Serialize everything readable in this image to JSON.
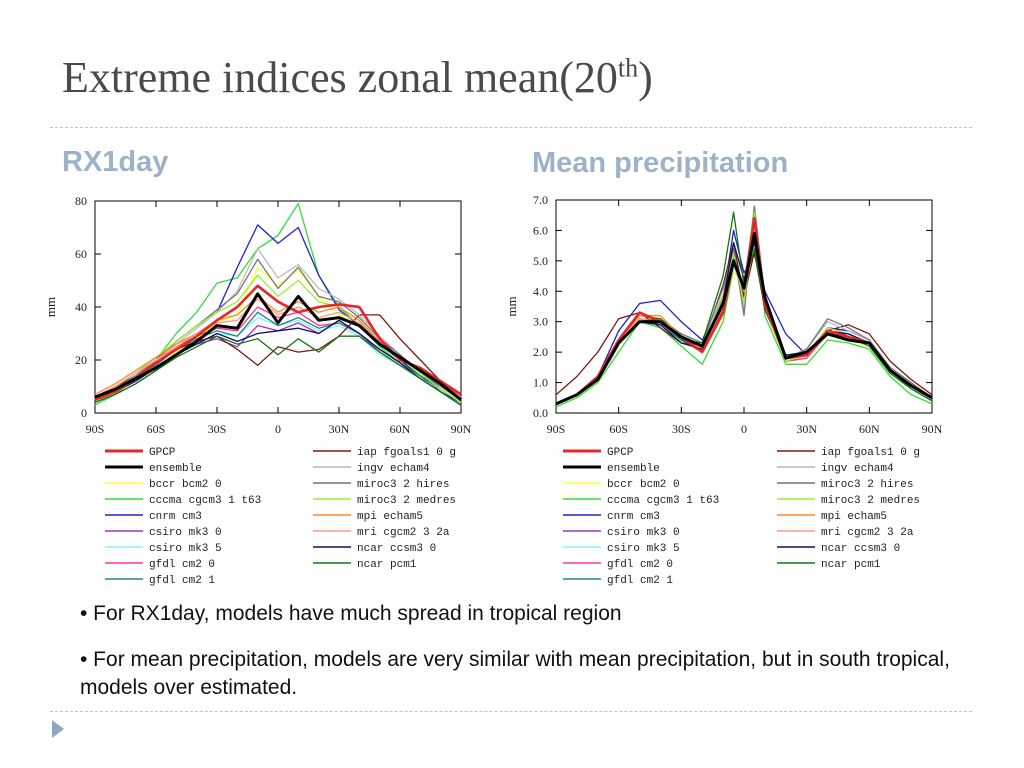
{
  "slide": {
    "title": "Extreme indices zonal mean(20",
    "title_sup": "th",
    "title_end": ")",
    "left_heading": "RX1day",
    "right_heading": "Mean precipitation",
    "bullets": [
      "• For RX1day, models have much spread in tropical region",
      "• For mean precipitation, models are very similar with mean precipitation, but in south tropical, models over estimated."
    ]
  },
  "chart_data": [
    {
      "type": "line",
      "ylabel": "mm",
      "ylim": [
        0,
        80
      ],
      "yticks": [
        "0",
        "20",
        "40",
        "60",
        "80"
      ],
      "xlim": [
        -90,
        90
      ],
      "xticks": [
        "90S",
        "60S",
        "30S",
        "0",
        "30N",
        "60N",
        "90N"
      ],
      "x": [
        -90,
        -80,
        -70,
        -60,
        -50,
        -40,
        -30,
        -20,
        -10,
        0,
        10,
        20,
        30,
        40,
        50,
        60,
        70,
        80,
        90
      ],
      "series": [
        {
          "name": "GPCP",
          "color": "#e8262a",
          "values": [
            5,
            8,
            13,
            19,
            24,
            29,
            35,
            40,
            48,
            42,
            38,
            40,
            41,
            40,
            28,
            20,
            17,
            12,
            7
          ]
        },
        {
          "name": "ensemble",
          "color": "#000000",
          "values": [
            6,
            9,
            13,
            17,
            22,
            27,
            33,
            32,
            45,
            34,
            44,
            35,
            36,
            33,
            26,
            21,
            16,
            11,
            5
          ]
        },
        {
          "name": "bccr bcm2 0",
          "color": "#ffff33",
          "values": [
            4,
            8,
            12,
            17,
            23,
            28,
            34,
            37,
            55,
            48,
            54,
            44,
            37,
            33,
            26,
            20,
            15,
            10,
            5
          ]
        },
        {
          "name": "cccma cgcm3 1 t63",
          "color": "#33dd33",
          "values": [
            3,
            7,
            13,
            20,
            30,
            38,
            49,
            51,
            62,
            67,
            79,
            52,
            40,
            33,
            25,
            19,
            13,
            8,
            3
          ]
        },
        {
          "name": "cnrm cm3",
          "color": "#2222cc",
          "values": [
            5,
            9,
            14,
            20,
            27,
            33,
            38,
            55,
            71,
            64,
            70,
            52,
            39,
            33,
            26,
            20,
            14,
            8,
            4
          ]
        },
        {
          "name": "csiro mk3 0",
          "color": "#9933cc",
          "values": [
            4,
            7,
            11,
            16,
            22,
            26,
            28,
            25,
            33,
            31,
            34,
            30,
            35,
            30,
            23,
            18,
            13,
            8,
            3
          ]
        },
        {
          "name": "csiro mk3 5",
          "color": "#88eeff",
          "values": [
            5,
            8,
            12,
            17,
            22,
            26,
            30,
            29,
            36,
            33,
            35,
            31,
            33,
            29,
            22,
            18,
            13,
            9,
            4
          ]
        },
        {
          "name": "gfdl cm2 0",
          "color": "#ff3399",
          "values": [
            6,
            9,
            14,
            19,
            25,
            29,
            32,
            31,
            40,
            36,
            38,
            33,
            34,
            30,
            24,
            19,
            14,
            10,
            5
          ]
        },
        {
          "name": "gfdl cm2 1",
          "color": "#1a8a7a",
          "values": [
            5,
            9,
            13,
            18,
            24,
            28,
            31,
            29,
            38,
            33,
            36,
            32,
            34,
            30,
            24,
            19,
            14,
            9,
            4
          ]
        },
        {
          "name": "iap fgoals1 0 g",
          "color": "#7a1a10",
          "values": [
            6,
            10,
            14,
            19,
            24,
            27,
            29,
            24,
            18,
            25,
            23,
            24,
            29,
            37,
            37,
            28,
            20,
            12,
            6
          ]
        },
        {
          "name": "ingv echam4",
          "color": "#bbbbbb",
          "values": [
            5,
            9,
            14,
            20,
            26,
            32,
            38,
            46,
            62,
            51,
            56,
            47,
            43,
            37,
            29,
            22,
            16,
            10,
            5
          ]
        },
        {
          "name": "miroc3 2 hires",
          "color": "#777777",
          "values": [
            5,
            9,
            14,
            20,
            27,
            33,
            39,
            45,
            58,
            47,
            55,
            44,
            42,
            36,
            28,
            22,
            15,
            10,
            5
          ]
        },
        {
          "name": "miroc3 2 medres",
          "color": "#99ee33",
          "values": [
            6,
            10,
            15,
            21,
            27,
            33,
            38,
            42,
            52,
            44,
            50,
            42,
            40,
            35,
            27,
            21,
            15,
            9,
            4
          ]
        },
        {
          "name": "mpi echam5",
          "color": "#ff8822",
          "values": [
            7,
            11,
            16,
            21,
            26,
            30,
            35,
            37,
            44,
            38,
            42,
            38,
            40,
            35,
            27,
            21,
            16,
            11,
            6
          ]
        },
        {
          "name": "mri cgcm2 3 2a",
          "color": "#ff9988",
          "values": [
            6,
            10,
            15,
            20,
            25,
            30,
            34,
            35,
            43,
            37,
            40,
            36,
            38,
            34,
            27,
            21,
            16,
            11,
            6
          ]
        },
        {
          "name": "ncar ccsm3 0",
          "color": "#111166",
          "values": [
            5,
            8,
            12,
            17,
            22,
            26,
            30,
            27,
            30,
            31,
            32,
            30,
            35,
            30,
            24,
            19,
            13,
            8,
            3
          ]
        },
        {
          "name": "ncar pcm1",
          "color": "#117711",
          "values": [
            4,
            7,
            11,
            16,
            21,
            25,
            29,
            26,
            28,
            22,
            28,
            23,
            29,
            29,
            23,
            18,
            13,
            8,
            3
          ]
        }
      ]
    },
    {
      "type": "line",
      "ylabel": "mm",
      "ylim": [
        0,
        7
      ],
      "yticks": [
        "0.0",
        "1.0",
        "2.0",
        "3.0",
        "4.0",
        "5.0",
        "6.0",
        "7.0"
      ],
      "xlim": [
        -90,
        90
      ],
      "xticks": [
        "90S",
        "60S",
        "30S",
        "0",
        "30N",
        "60N",
        "90N"
      ],
      "x": [
        -90,
        -80,
        -70,
        -60,
        -50,
        -40,
        -30,
        -20,
        -10,
        -5,
        0,
        5,
        10,
        20,
        30,
        40,
        50,
        60,
        70,
        80,
        90
      ],
      "series": [
        {
          "name": "GPCP",
          "color": "#e8262a",
          "values": [
            0.3,
            0.6,
            1.2,
            2.4,
            3.3,
            3.0,
            2.5,
            2.0,
            3.3,
            5.0,
            4.1,
            6.4,
            3.6,
            1.8,
            1.9,
            2.7,
            2.5,
            2.3,
            1.4,
            0.9,
            0.5
          ]
        },
        {
          "name": "ensemble",
          "color": "#000000",
          "values": [
            0.3,
            0.6,
            1.1,
            2.3,
            3.0,
            3.0,
            2.5,
            2.2,
            3.6,
            5.0,
            4.1,
            5.9,
            3.8,
            1.8,
            2.0,
            2.6,
            2.4,
            2.3,
            1.4,
            0.9,
            0.5
          ]
        },
        {
          "name": "bccr bcm2 0",
          "color": "#ffff33",
          "values": [
            0.3,
            0.6,
            1.2,
            2.4,
            3.3,
            3.1,
            2.4,
            2.0,
            3.2,
            4.6,
            4.3,
            6.1,
            3.4,
            1.7,
            1.8,
            2.6,
            2.4,
            2.2,
            1.3,
            0.8,
            0.5
          ]
        },
        {
          "name": "cccma cgcm3 1 t63",
          "color": "#33dd33",
          "values": [
            0.2,
            0.5,
            1.0,
            2.0,
            3.0,
            2.8,
            2.2,
            1.6,
            3.0,
            4.8,
            4.0,
            6.8,
            3.2,
            1.6,
            1.6,
            2.4,
            2.3,
            2.1,
            1.2,
            0.6,
            0.3
          ]
        },
        {
          "name": "cnrm cm3",
          "color": "#2222cc",
          "values": [
            0.3,
            0.6,
            1.2,
            2.7,
            3.6,
            3.7,
            3.0,
            2.4,
            3.8,
            6.0,
            4.6,
            5.2,
            4.0,
            2.6,
            1.9,
            2.8,
            2.7,
            2.4,
            1.4,
            0.8,
            0.4
          ]
        },
        {
          "name": "csiro mk3 0",
          "color": "#9933cc",
          "values": [
            0.3,
            0.6,
            1.1,
            2.3,
            3.1,
            2.9,
            2.4,
            2.0,
            3.4,
            4.9,
            3.9,
            5.8,
            3.4,
            1.8,
            1.9,
            2.6,
            2.6,
            2.3,
            1.4,
            0.9,
            0.5
          ]
        },
        {
          "name": "csiro mk3 5",
          "color": "#88eeff",
          "values": [
            0.3,
            0.6,
            1.2,
            2.3,
            3.0,
            2.9,
            2.4,
            2.0,
            3.3,
            4.8,
            4.0,
            5.9,
            3.5,
            1.8,
            1.9,
            2.6,
            2.5,
            2.3,
            1.4,
            0.9,
            0.5
          ]
        },
        {
          "name": "gfdl cm2 0",
          "color": "#ff3399",
          "values": [
            0.3,
            0.6,
            1.2,
            2.4,
            3.1,
            3.0,
            2.4,
            2.0,
            3.4,
            5.1,
            4.0,
            6.2,
            3.5,
            1.7,
            1.8,
            2.6,
            2.5,
            2.3,
            1.4,
            0.9,
            0.5
          ]
        },
        {
          "name": "gfdl cm2 1",
          "color": "#1a8a7a",
          "values": [
            0.3,
            0.6,
            1.1,
            2.3,
            3.0,
            2.9,
            2.4,
            2.0,
            3.5,
            5.2,
            4.1,
            6.0,
            3.6,
            1.8,
            1.9,
            2.7,
            2.5,
            2.3,
            1.4,
            0.9,
            0.5
          ]
        },
        {
          "name": "iap fgoals1 0 g",
          "color": "#7a1a10",
          "values": [
            0.6,
            1.2,
            2.0,
            3.1,
            3.3,
            2.8,
            2.3,
            2.2,
            4.2,
            5.6,
            3.8,
            5.3,
            3.4,
            1.9,
            2.0,
            2.7,
            2.9,
            2.6,
            1.7,
            1.1,
            0.6
          ]
        },
        {
          "name": "ingv echam4",
          "color": "#bbbbbb",
          "values": [
            0.3,
            0.6,
            1.2,
            2.4,
            3.1,
            3.0,
            2.6,
            2.3,
            3.9,
            5.4,
            3.4,
            6.4,
            3.6,
            1.8,
            2.1,
            3.0,
            2.7,
            2.4,
            1.5,
            1.0,
            0.5
          ]
        },
        {
          "name": "miroc3 2 hires",
          "color": "#777777",
          "values": [
            0.3,
            0.6,
            1.2,
            2.4,
            3.2,
            3.1,
            2.6,
            2.3,
            4.1,
            5.4,
            3.2,
            6.8,
            3.8,
            1.8,
            2.1,
            3.1,
            2.8,
            2.4,
            1.5,
            1.0,
            0.5
          ]
        },
        {
          "name": "miroc3 2 medres",
          "color": "#99ee33",
          "values": [
            0.3,
            0.6,
            1.2,
            2.3,
            3.0,
            3.0,
            2.5,
            2.1,
            3.8,
            5.2,
            3.6,
            6.6,
            3.5,
            1.7,
            1.9,
            2.8,
            2.6,
            2.3,
            1.4,
            0.9,
            0.5
          ]
        },
        {
          "name": "mpi echam5",
          "color": "#ff8822",
          "values": [
            0.3,
            0.6,
            1.2,
            2.4,
            3.2,
            3.2,
            2.5,
            2.1,
            3.6,
            5.0,
            4.0,
            6.3,
            3.6,
            1.8,
            2.0,
            2.6,
            2.5,
            2.3,
            1.4,
            0.9,
            0.5
          ]
        },
        {
          "name": "mri cgcm2 3 2a",
          "color": "#ff9988",
          "values": [
            0.3,
            0.6,
            1.2,
            2.4,
            3.1,
            3.0,
            2.5,
            2.1,
            3.5,
            4.9,
            4.0,
            6.0,
            3.6,
            1.8,
            2.0,
            2.6,
            2.5,
            2.3,
            1.4,
            0.9,
            0.5
          ]
        },
        {
          "name": "ncar ccsm3 0",
          "color": "#111166",
          "values": [
            0.3,
            0.6,
            1.1,
            2.3,
            3.0,
            2.9,
            2.3,
            2.1,
            3.7,
            5.6,
            4.4,
            5.6,
            3.7,
            1.9,
            2.0,
            2.7,
            2.6,
            2.3,
            1.4,
            0.9,
            0.5
          ]
        },
        {
          "name": "ncar pcm1",
          "color": "#117711",
          "values": [
            0.3,
            0.6,
            1.1,
            2.3,
            3.0,
            3.1,
            2.4,
            2.3,
            4.5,
            6.6,
            4.2,
            5.4,
            3.5,
            1.8,
            1.9,
            2.6,
            2.5,
            2.2,
            1.3,
            0.8,
            0.4
          ]
        }
      ]
    }
  ]
}
